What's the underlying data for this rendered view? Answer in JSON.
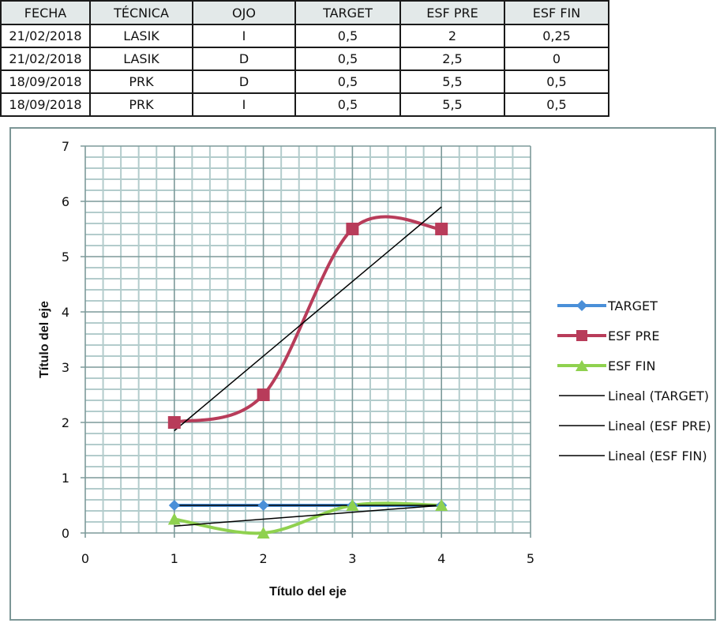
{
  "table": {
    "headers": [
      "FECHA",
      "TÉCNICA",
      "OJO",
      "TARGET",
      "ESF PRE",
      "ESF FIN"
    ],
    "rows": [
      [
        "21/02/2018",
        "LASIK",
        "I",
        "0,5",
        "2",
        "0,25"
      ],
      [
        "21/02/2018",
        "LASIK",
        "D",
        "0,5",
        "2,5",
        "0"
      ],
      [
        "18/09/2018",
        "PRK",
        "D",
        "0,5",
        "5,5",
        "0,5"
      ],
      [
        "18/09/2018",
        "PRK",
        "I",
        "0,5",
        "5,5",
        "0,5"
      ]
    ]
  },
  "chart_data": {
    "type": "scatter",
    "xlabel": "Título del eje",
    "ylabel": "Título del eje",
    "xlim": [
      0,
      5
    ],
    "ylim": [
      0,
      7
    ],
    "x_ticks": [
      "0",
      "1",
      "2",
      "3",
      "4",
      "5"
    ],
    "y_ticks": [
      "0",
      "1",
      "2",
      "3",
      "4",
      "5",
      "6",
      "7"
    ],
    "grid": true,
    "legend_position": "right",
    "x": [
      1,
      2,
      3,
      4
    ],
    "series": [
      {
        "name": "TARGET",
        "values": [
          0.5,
          0.5,
          0.5,
          0.5
        ],
        "color": "#4a8fd8",
        "marker": "diamond",
        "smooth": true
      },
      {
        "name": "ESF PRE",
        "values": [
          2,
          2.5,
          5.5,
          5.5
        ],
        "color": "#b83c5a",
        "marker": "square",
        "smooth": true
      },
      {
        "name": "ESF FIN",
        "values": [
          0.25,
          0,
          0.5,
          0.5
        ],
        "color": "#8fd14f",
        "marker": "triangle",
        "smooth": true
      }
    ],
    "trendlines": [
      {
        "name": "Lineal (TARGET)",
        "slope": 0,
        "intercept": 0.5,
        "color": "#000000"
      },
      {
        "name": "Lineal (ESF PRE)",
        "slope": 1.35,
        "intercept": 0.5,
        "color": "#000000"
      },
      {
        "name": "Lineal (ESF FIN)",
        "slope": 0.125,
        "intercept": 0,
        "color": "#000000"
      }
    ]
  }
}
